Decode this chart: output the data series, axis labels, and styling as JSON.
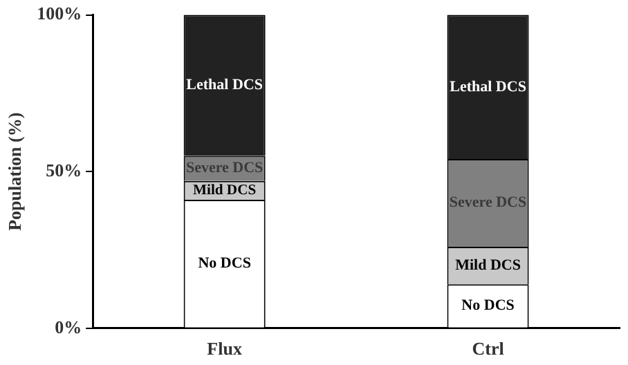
{
  "chart_data": {
    "type": "bar",
    "stacked": true,
    "ylabel": "Population (%)",
    "categories": [
      "Flux",
      "Ctrl"
    ],
    "ylim": [
      0,
      100
    ],
    "yticks": [
      {
        "value": 0,
        "label": "0%"
      },
      {
        "value": 50,
        "label": "50%"
      },
      {
        "value": 100,
        "label": "100%"
      }
    ],
    "grid": false,
    "legend": false,
    "series": [
      {
        "name": "No DCS",
        "color": "#ffffff",
        "values": [
          41,
          14
        ]
      },
      {
        "name": "Mild DCS",
        "color": "#c8c8c8",
        "values": [
          6,
          12
        ]
      },
      {
        "name": "Severe DCS",
        "color": "#808080",
        "values": [
          8,
          28
        ]
      },
      {
        "name": "Lethal DCS",
        "color": "#222222",
        "values": [
          45,
          46
        ]
      }
    ]
  }
}
